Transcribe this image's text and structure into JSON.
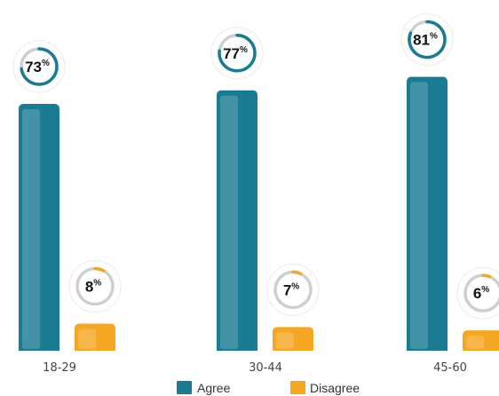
{
  "chart_data": {
    "type": "bar",
    "categories": [
      "18-29",
      "30-44",
      "45-60"
    ],
    "series": [
      {
        "name": "Agree",
        "values": [
          73,
          77,
          81
        ],
        "color": "#1b7b93"
      },
      {
        "name": "Disagree",
        "values": [
          8,
          7,
          6
        ],
        "color": "#f5a623"
      }
    ],
    "ylim": [
      0,
      100
    ],
    "percent_symbol": "%",
    "legend": {
      "position": "bottom",
      "items": [
        "Agree",
        "Disagree"
      ]
    },
    "grid": false,
    "value_badges": "circular-progress"
  }
}
